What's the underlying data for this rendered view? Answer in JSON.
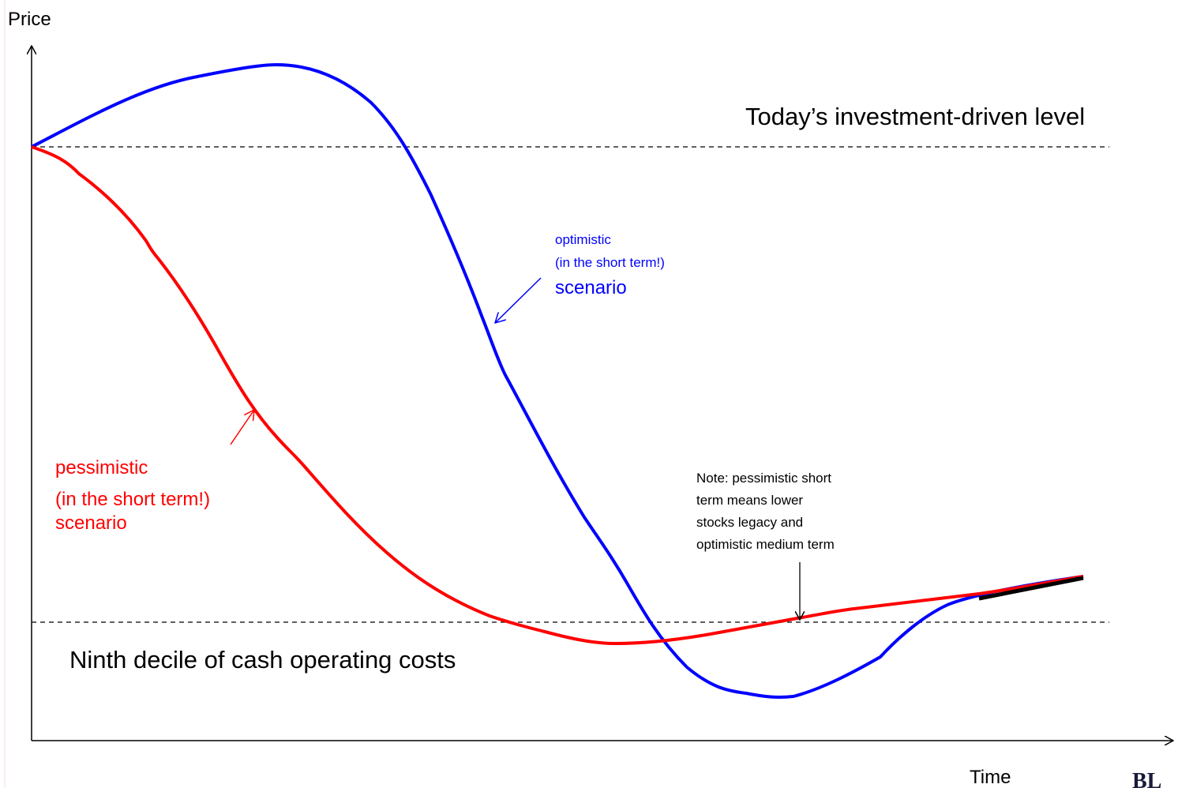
{
  "axes": {
    "y_label": "Price",
    "x_label": "Time"
  },
  "levels": {
    "upper": "Today’s investment-driven level",
    "lower": "Ninth decile of cash operating costs"
  },
  "optimistic": {
    "lines": [
      "optimistic",
      "(in the short term!)",
      "scenario"
    ]
  },
  "pessimistic": {
    "lines": [
      "pessimistic",
      "(in the short term!)",
      "scenario"
    ]
  },
  "note": {
    "lines": [
      "Note: pessimistic  short",
      "term means lower",
      "stocks legacy and",
      "optimistic medium term"
    ]
  },
  "logo": "BL"
}
